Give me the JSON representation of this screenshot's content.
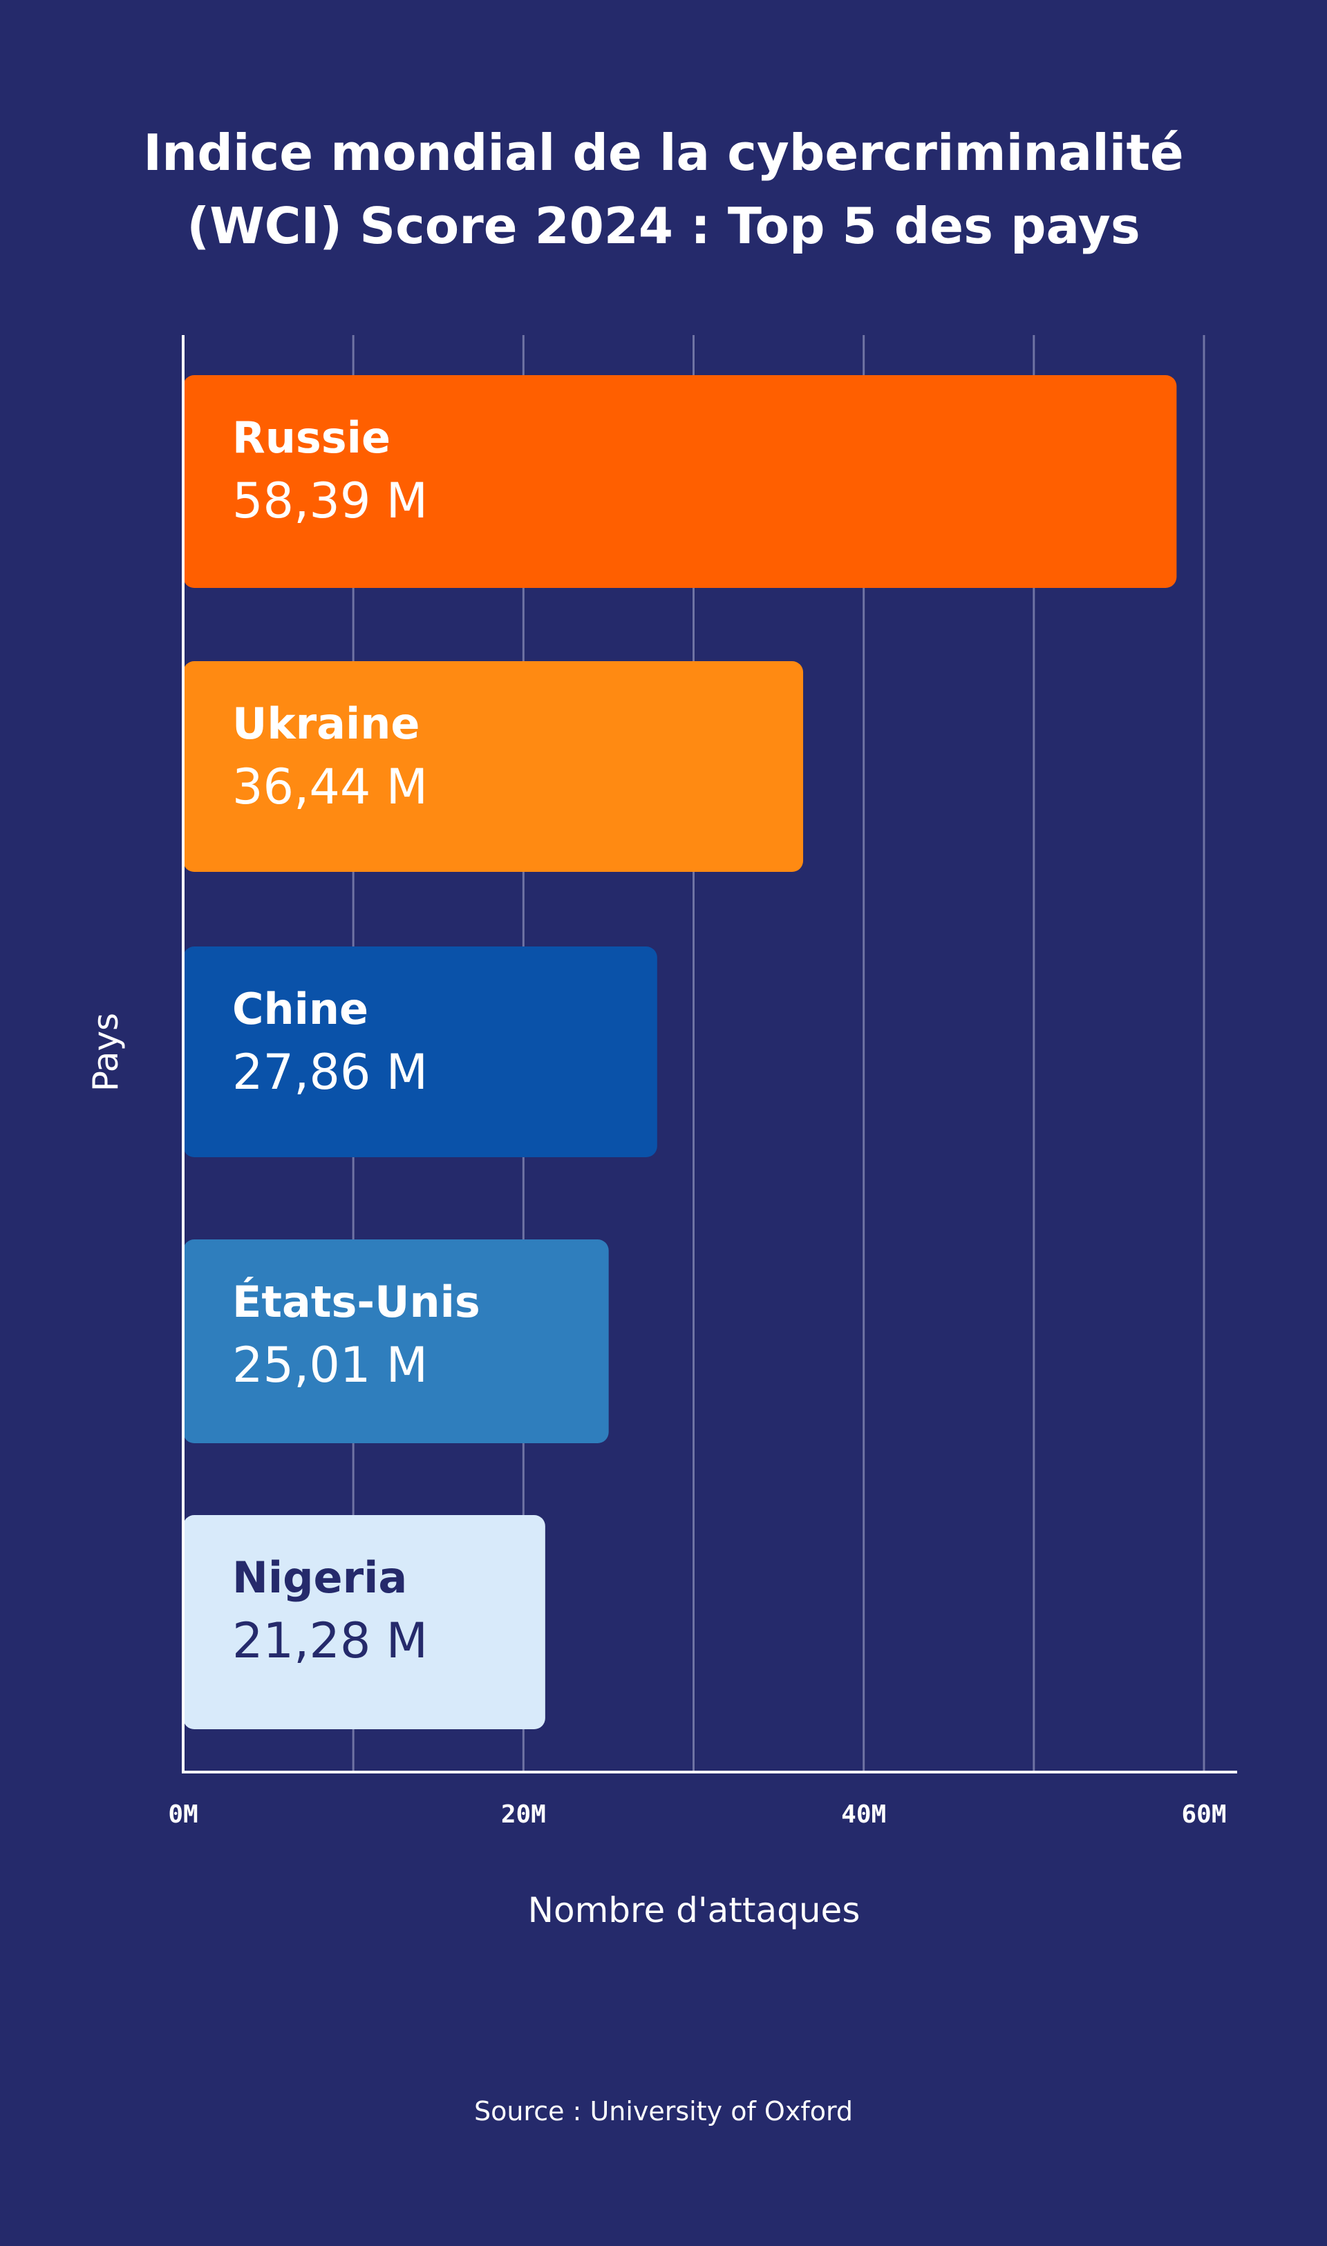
{
  "chart_data": {
    "type": "bar",
    "orientation": "horizontal",
    "title_lines": [
      "Indice mondial de la cybercriminalité",
      "(WCI) Score 2024 : Top 5 des pays"
    ],
    "xlabel": "Nombre d'attaques",
    "ylabel": "Pays",
    "xlim": [
      0,
      60
    ],
    "x_ticks": [
      {
        "value": 0,
        "label": "0M"
      },
      {
        "value": 20,
        "label": "20M"
      },
      {
        "value": 40,
        "label": "40M"
      },
      {
        "value": 60,
        "label": "60M"
      }
    ],
    "gridlines": [
      10,
      20,
      30,
      40,
      50,
      60
    ],
    "grid": true,
    "bars": [
      {
        "category": "Russie",
        "value": 58.39,
        "value_label": "58,39 M",
        "color": "#ff5f00",
        "text_color": "#ffffff"
      },
      {
        "category": "Ukraine",
        "value": 36.44,
        "value_label": "36,44 M",
        "color": "#ff8a12",
        "text_color": "#ffffff"
      },
      {
        "category": "Chine",
        "value": 27.86,
        "value_label": "27,86 M",
        "color": "#0a52a9",
        "text_color": "#ffffff"
      },
      {
        "category": "États-Unis",
        "value": 25.01,
        "value_label": "25,01 M",
        "color": "#2f7ebd",
        "text_color": "#ffffff"
      },
      {
        "category": "Nigeria",
        "value": 21.28,
        "value_label": "21,28 M",
        "color": "#d8eafa",
        "text_color": "#252a6b"
      }
    ]
  },
  "source": "Source : University of Oxford",
  "colors": {
    "background": "#252a6b",
    "gridline": "#6f73a3",
    "axis": "#ffffff",
    "text": "#ffffff"
  }
}
